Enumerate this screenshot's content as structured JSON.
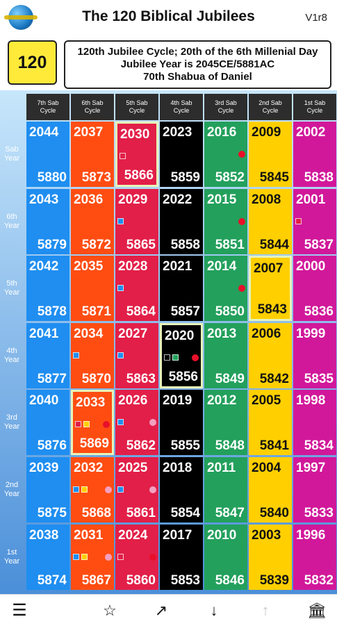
{
  "header": {
    "title": "The 120 Biblical Jubilees",
    "version": "V1r8"
  },
  "info": {
    "cycle_number": "120",
    "lines": [
      "120th Jubilee Cycle; 20th of the 6th Millenial Day",
      "Jubilee Year is 2045CE/5881AC",
      "70th Shabua of Daniel"
    ]
  },
  "columns": [
    {
      "label": [
        "7th Sab",
        "Cycle"
      ],
      "color": "#1f8ef0",
      "text": "#ffffff"
    },
    {
      "label": [
        "6th Sab",
        "Cycle"
      ],
      "color": "#ff4d12",
      "text": "#ffffff"
    },
    {
      "label": [
        "5th Sab",
        "Cycle"
      ],
      "color": "#e21f48",
      "text": "#ffffff"
    },
    {
      "label": [
        "4th Sab",
        "Cycle"
      ],
      "color": "#000000",
      "text": "#ffffff"
    },
    {
      "label": [
        "3rd Sab",
        "Cycle"
      ],
      "color": "#23a05c",
      "text": "#ffffff"
    },
    {
      "label": [
        "2nd Sab",
        "Cycle"
      ],
      "color": "#ffcf00",
      "text": "#111111"
    },
    {
      "label": [
        "1st Sab",
        "Cycle"
      ],
      "color": "#d1189a",
      "text": "#ffffff"
    }
  ],
  "rows": [
    {
      "label": [
        "Sab",
        "Year"
      ],
      "cells": [
        [
          "2044",
          "5880"
        ],
        [
          "2037",
          "5873"
        ],
        [
          "2030",
          "5866"
        ],
        [
          "2023",
          "5859"
        ],
        [
          "2016",
          "5852"
        ],
        [
          "2009",
          "5845"
        ],
        [
          "2002",
          "5838"
        ]
      ]
    },
    {
      "label": [
        "6th",
        "Year"
      ],
      "cells": [
        [
          "2043",
          "5879"
        ],
        [
          "2036",
          "5872"
        ],
        [
          "2029",
          "5865"
        ],
        [
          "2022",
          "5858"
        ],
        [
          "2015",
          "5851"
        ],
        [
          "2008",
          "5844"
        ],
        [
          "2001",
          "5837"
        ]
      ]
    },
    {
      "label": [
        "5th",
        "Year"
      ],
      "cells": [
        [
          "2042",
          "5878"
        ],
        [
          "2035",
          "5871"
        ],
        [
          "2028",
          "5864"
        ],
        [
          "2021",
          "5857"
        ],
        [
          "2014",
          "5850"
        ],
        [
          "2007",
          "5843"
        ],
        [
          "2000",
          "5836"
        ]
      ]
    },
    {
      "label": [
        "4th",
        "Year"
      ],
      "cells": [
        [
          "2041",
          "5877"
        ],
        [
          "2034",
          "5870"
        ],
        [
          "2027",
          "5863"
        ],
        [
          "2020",
          "5856"
        ],
        [
          "2013",
          "5849"
        ],
        [
          "2006",
          "5842"
        ],
        [
          "1999",
          "5835"
        ]
      ]
    },
    {
      "label": [
        "3rd",
        "Year"
      ],
      "cells": [
        [
          "2040",
          "5876"
        ],
        [
          "2033",
          "5869"
        ],
        [
          "2026",
          "5862"
        ],
        [
          "2019",
          "5855"
        ],
        [
          "2012",
          "5848"
        ],
        [
          "2005",
          "5841"
        ],
        [
          "1998",
          "5834"
        ]
      ]
    },
    {
      "label": [
        "2nd",
        "Year"
      ],
      "cells": [
        [
          "2039",
          "5875"
        ],
        [
          "2032",
          "5868"
        ],
        [
          "2025",
          "5861"
        ],
        [
          "2018",
          "5854"
        ],
        [
          "2011",
          "5847"
        ],
        [
          "2004",
          "5840"
        ],
        [
          "1997",
          "5833"
        ]
      ]
    },
    {
      "label": [
        "1st",
        "Year"
      ],
      "cells": [
        [
          "2038",
          "5874"
        ],
        [
          "2031",
          "5867"
        ],
        [
          "2024",
          "5860"
        ],
        [
          "2017",
          "5853"
        ],
        [
          "2010",
          "5846"
        ],
        [
          "2003",
          "5839"
        ],
        [
          "1996",
          "5832"
        ]
      ]
    }
  ],
  "highlighted": [
    [
      0,
      2
    ],
    [
      2,
      5
    ],
    [
      3,
      3
    ],
    [
      4,
      1
    ]
  ],
  "markers": [
    {
      "r": 0,
      "c": 2,
      "items": [
        [
          "sq",
          "#e21f48",
          0
        ]
      ]
    },
    {
      "r": 0,
      "c": 4,
      "items": [
        [
          "dot",
          "#e8102a",
          1
        ]
      ]
    },
    {
      "r": 1,
      "c": 2,
      "items": [
        [
          "sq",
          "#1f8ef0",
          0
        ]
      ]
    },
    {
      "r": 1,
      "c": 4,
      "items": [
        [
          "dot",
          "#e8102a",
          1
        ]
      ]
    },
    {
      "r": 1,
      "c": 6,
      "items": [
        [
          "sq",
          "#e21f48",
          0
        ]
      ]
    },
    {
      "r": 2,
      "c": 2,
      "items": [
        [
          "sq",
          "#1f8ef0",
          0
        ]
      ]
    },
    {
      "r": 2,
      "c": 4,
      "items": [
        [
          "dot",
          "#e8102a",
          1
        ]
      ]
    },
    {
      "r": 3,
      "c": 1,
      "items": [
        [
          "sq",
          "#1f8ef0",
          0
        ]
      ]
    },
    {
      "r": 3,
      "c": 2,
      "items": [
        [
          "sq",
          "#1f8ef0",
          0
        ]
      ]
    },
    {
      "r": 3,
      "c": 3,
      "items": [
        [
          "sq",
          "#000000",
          0
        ],
        [
          "sq",
          "#23a05c",
          1
        ],
        [
          "dot",
          "#e8102a",
          2
        ]
      ]
    },
    {
      "r": 4,
      "c": 1,
      "items": [
        [
          "sq",
          "#e21f48",
          0
        ],
        [
          "sq",
          "#ffcf00",
          1
        ],
        [
          "dot",
          "#e8102a",
          2
        ]
      ]
    },
    {
      "r": 4,
      "c": 2,
      "items": [
        [
          "sq",
          "#1f8ef0",
          0
        ],
        [
          "dot",
          "#f4a0c0",
          2
        ]
      ]
    },
    {
      "r": 5,
      "c": 1,
      "items": [
        [
          "sq",
          "#1f8ef0",
          0
        ],
        [
          "sq",
          "#ffcf00",
          1
        ],
        [
          "dot",
          "#f4a0c0",
          2
        ]
      ]
    },
    {
      "r": 5,
      "c": 2,
      "items": [
        [
          "sq",
          "#1f8ef0",
          0
        ],
        [
          "dot",
          "#f4a0c0",
          2
        ]
      ]
    },
    {
      "r": 6,
      "c": 1,
      "items": [
        [
          "sq",
          "#1f8ef0",
          0
        ],
        [
          "sq",
          "#ffcf00",
          1
        ],
        [
          "dot",
          "#f4a0c0",
          2
        ]
      ]
    },
    {
      "r": 6,
      "c": 2,
      "items": [
        [
          "sq",
          "#e21f48",
          0
        ],
        [
          "dot",
          "#e8102a",
          2
        ]
      ]
    }
  ],
  "bottom_nav": [
    {
      "name": "menu-icon",
      "glyph": "☰"
    },
    {
      "name": "star-icon",
      "glyph": "☆"
    },
    {
      "name": "arrow-up-right-icon",
      "glyph": "↗"
    },
    {
      "name": "arrow-down-icon",
      "glyph": "↓"
    },
    {
      "name": "arrow-up-icon",
      "glyph": "↑",
      "disabled": true
    },
    {
      "name": "bank-icon",
      "glyph": "🏛"
    }
  ]
}
